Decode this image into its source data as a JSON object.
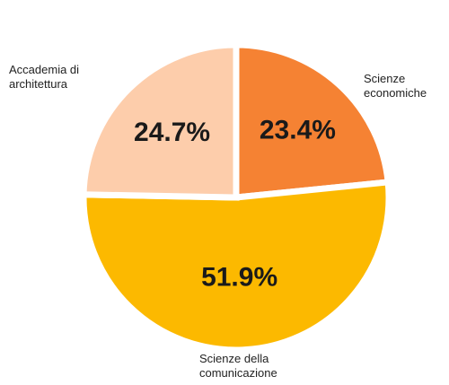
{
  "chart_data": {
    "type": "pie",
    "categories": [
      "Scienze economiche",
      "Scienze della comunicazione",
      "Accademia di architettura"
    ],
    "values": [
      23.4,
      51.9,
      24.7
    ],
    "value_labels": [
      "23.4%",
      "51.9%",
      "24.7%"
    ],
    "colors": [
      "#f58233",
      "#fcb900",
      "#fdcdab"
    ]
  }
}
